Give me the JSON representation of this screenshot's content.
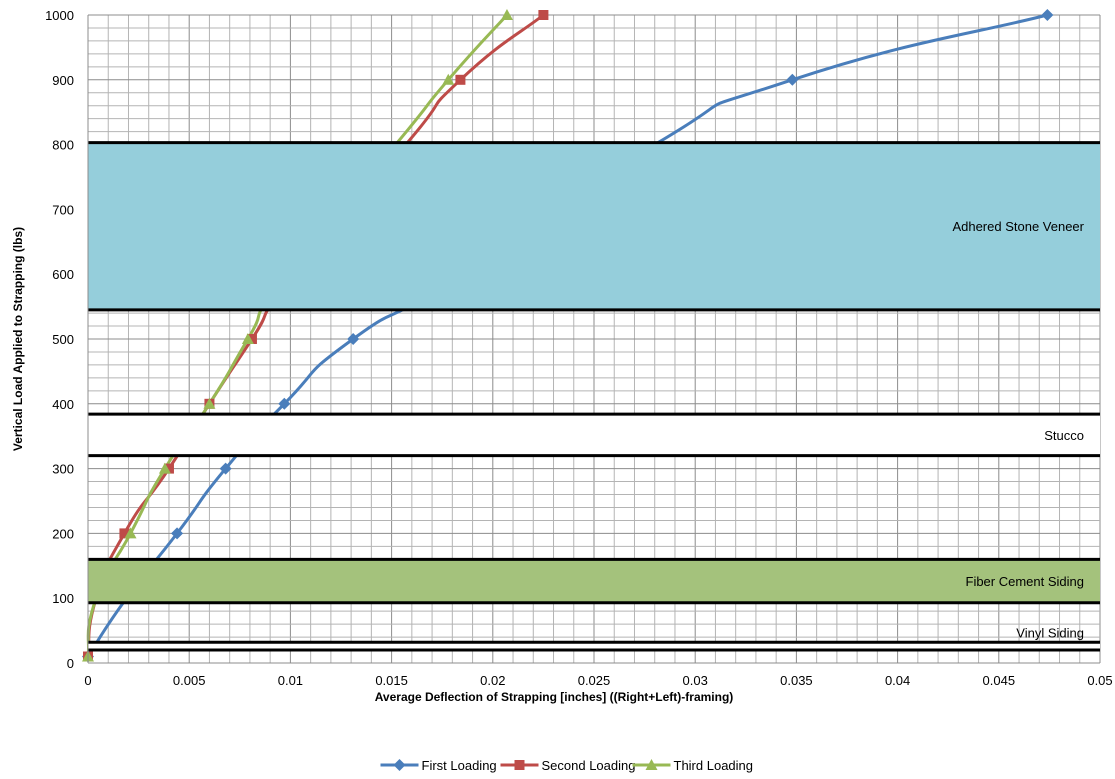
{
  "chart_data": {
    "type": "line",
    "title": "",
    "xlabel": "Average Deflection  of Strapping [inches]  ((Right+Left)-framing)",
    "ylabel": "Vertical Load Applied to Strapping (lbs)",
    "xlim": [
      0,
      0.05
    ],
    "ylim": [
      0,
      1000
    ],
    "x_ticks": [
      0,
      0.005,
      0.01,
      0.015,
      0.02,
      0.025,
      0.03,
      0.035,
      0.04,
      0.045,
      0.05
    ],
    "x_tick_labels": [
      "0",
      "0.005",
      "0.01",
      "0.015",
      "0.02",
      "0.025",
      "0.03",
      "0.035",
      "0.04",
      "0.045",
      "0.05"
    ],
    "y_ticks": [
      0,
      100,
      200,
      300,
      400,
      500,
      600,
      700,
      800,
      900,
      1000
    ],
    "y_tick_labels": [
      "0",
      "100",
      "200",
      "300",
      "400",
      "500",
      "600",
      "700",
      "800",
      "900",
      "1000"
    ],
    "grid": true,
    "legend_position": "bottom",
    "series": [
      {
        "name": "First Loading",
        "color": "#4a7ebb",
        "marker": "diamond",
        "x": [
          0.0,
          0.0019,
          0.0044,
          0.0068,
          0.0097,
          0.0131,
          0.0185,
          0.028,
          0.0348,
          0.0474
        ],
        "y": [
          10,
          100,
          200,
          300,
          400,
          500,
          600,
          800,
          900,
          1000
        ]
      },
      {
        "name": "Second Loading",
        "color": "#be4b48",
        "marker": "square",
        "x": [
          0.0,
          0.0004,
          0.0018,
          0.004,
          0.006,
          0.0081,
          0.0102,
          0.0157,
          0.0184,
          0.0225
        ],
        "y": [
          10,
          100,
          200,
          300,
          400,
          500,
          600,
          800,
          900,
          1000
        ]
      },
      {
        "name": "Third Loading",
        "color": "#98b954",
        "marker": "triangle",
        "x": [
          0.0,
          0.0004,
          0.0021,
          0.0038,
          0.006,
          0.0079,
          0.0098,
          0.0152,
          0.0178,
          0.0207
        ],
        "y": [
          10,
          100,
          200,
          300,
          400,
          500,
          600,
          800,
          900,
          1000
        ]
      }
    ],
    "bands": [
      {
        "label": "Adhered Stone Veneer",
        "y_min": 545,
        "y_max": 803,
        "color": "#95cedb"
      },
      {
        "label": "Stucco",
        "y_min": 320,
        "y_max": 384,
        "color": "#ffffff"
      },
      {
        "label": "Fiber Cement Siding",
        "y_min": 93,
        "y_max": 160,
        "color": "#a4c27c"
      },
      {
        "label": "Vinyl Siding",
        "y_min": 20,
        "y_max": 32,
        "color": "#ffffff"
      }
    ],
    "hidden_under_bands": [
      {
        "band": "Adhered Stone Veneer",
        "series": [
          "First Loading",
          "Second Loading",
          "Third Loading"
        ]
      },
      {
        "band": "Fiber Cement Siding",
        "series": [
          "First Loading",
          "Second Loading",
          "Third Loading"
        ]
      }
    ]
  }
}
